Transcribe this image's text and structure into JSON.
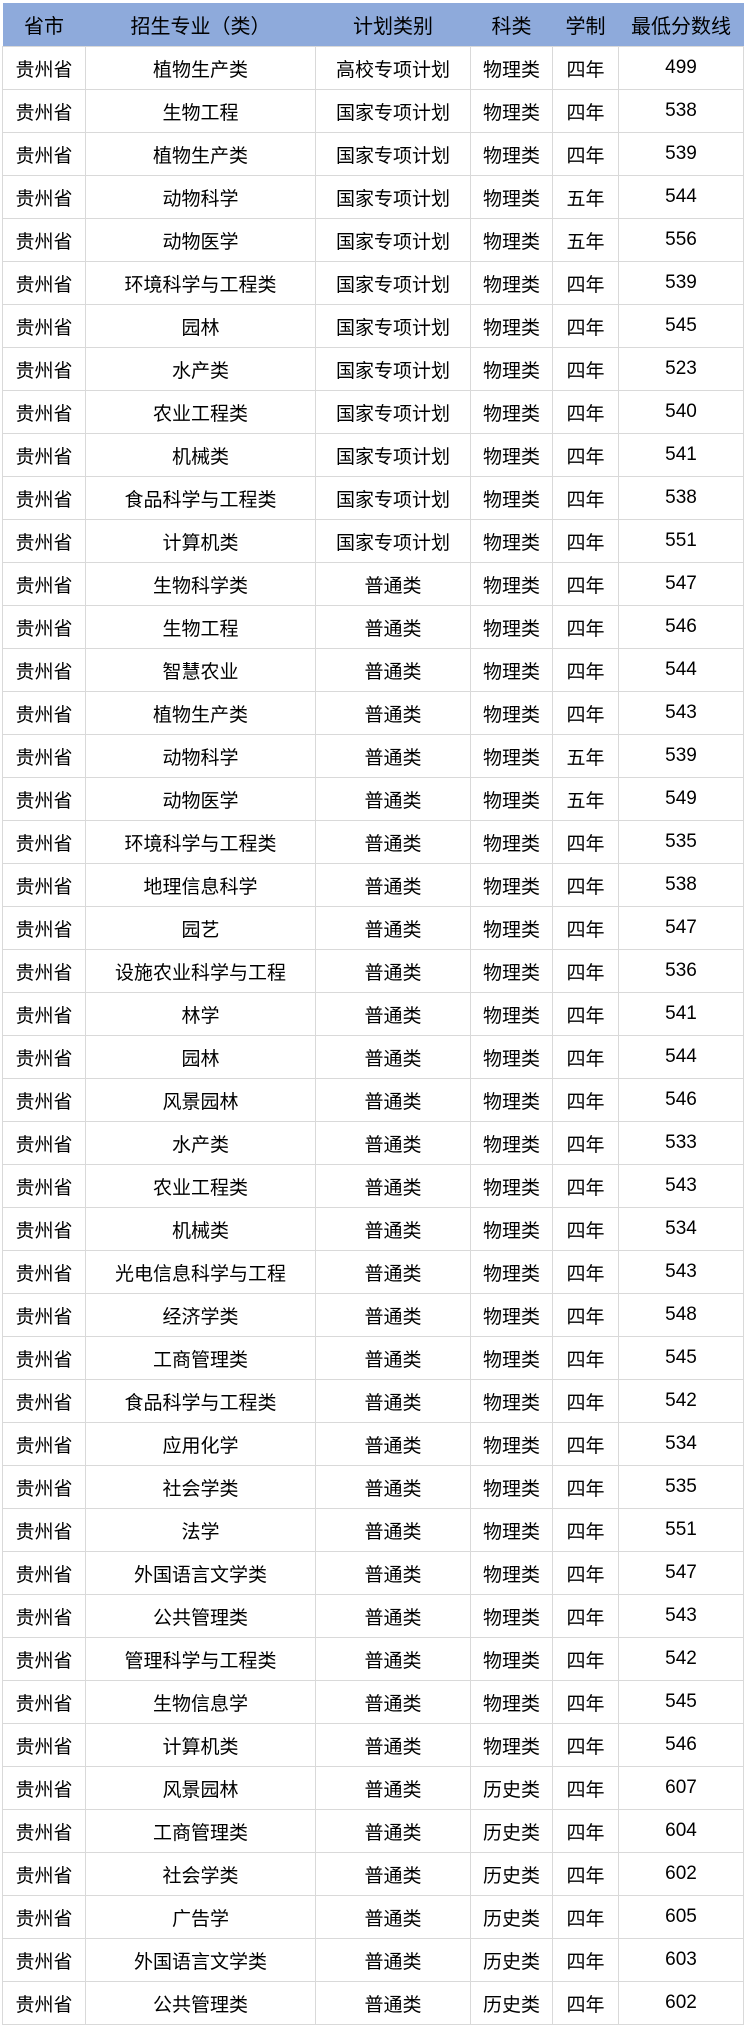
{
  "colors": {
    "header_bg": "#8EAADB",
    "grid_border": "#D9D9D9",
    "text": "#000000",
    "row_bg": "#FFFFFF"
  },
  "table": {
    "headers": [
      "省市",
      "招生专业（类）",
      "计划类别",
      "科类",
      "学制",
      "最低分数线"
    ],
    "rows": [
      [
        "贵州省",
        "植物生产类",
        "高校专项计划",
        "物理类",
        "四年",
        "499"
      ],
      [
        "贵州省",
        "生物工程",
        "国家专项计划",
        "物理类",
        "四年",
        "538"
      ],
      [
        "贵州省",
        "植物生产类",
        "国家专项计划",
        "物理类",
        "四年",
        "539"
      ],
      [
        "贵州省",
        "动物科学",
        "国家专项计划",
        "物理类",
        "五年",
        "544"
      ],
      [
        "贵州省",
        "动物医学",
        "国家专项计划",
        "物理类",
        "五年",
        "556"
      ],
      [
        "贵州省",
        "环境科学与工程类",
        "国家专项计划",
        "物理类",
        "四年",
        "539"
      ],
      [
        "贵州省",
        "园林",
        "国家专项计划",
        "物理类",
        "四年",
        "545"
      ],
      [
        "贵州省",
        "水产类",
        "国家专项计划",
        "物理类",
        "四年",
        "523"
      ],
      [
        "贵州省",
        "农业工程类",
        "国家专项计划",
        "物理类",
        "四年",
        "540"
      ],
      [
        "贵州省",
        "机械类",
        "国家专项计划",
        "物理类",
        "四年",
        "541"
      ],
      [
        "贵州省",
        "食品科学与工程类",
        "国家专项计划",
        "物理类",
        "四年",
        "538"
      ],
      [
        "贵州省",
        "计算机类",
        "国家专项计划",
        "物理类",
        "四年",
        "551"
      ],
      [
        "贵州省",
        "生物科学类",
        "普通类",
        "物理类",
        "四年",
        "547"
      ],
      [
        "贵州省",
        "生物工程",
        "普通类",
        "物理类",
        "四年",
        "546"
      ],
      [
        "贵州省",
        "智慧农业",
        "普通类",
        "物理类",
        "四年",
        "544"
      ],
      [
        "贵州省",
        "植物生产类",
        "普通类",
        "物理类",
        "四年",
        "543"
      ],
      [
        "贵州省",
        "动物科学",
        "普通类",
        "物理类",
        "五年",
        "539"
      ],
      [
        "贵州省",
        "动物医学",
        "普通类",
        "物理类",
        "五年",
        "549"
      ],
      [
        "贵州省",
        "环境科学与工程类",
        "普通类",
        "物理类",
        "四年",
        "535"
      ],
      [
        "贵州省",
        "地理信息科学",
        "普通类",
        "物理类",
        "四年",
        "538"
      ],
      [
        "贵州省",
        "园艺",
        "普通类",
        "物理类",
        "四年",
        "547"
      ],
      [
        "贵州省",
        "设施农业科学与工程",
        "普通类",
        "物理类",
        "四年",
        "536"
      ],
      [
        "贵州省",
        "林学",
        "普通类",
        "物理类",
        "四年",
        "541"
      ],
      [
        "贵州省",
        "园林",
        "普通类",
        "物理类",
        "四年",
        "544"
      ],
      [
        "贵州省",
        "风景园林",
        "普通类",
        "物理类",
        "四年",
        "546"
      ],
      [
        "贵州省",
        "水产类",
        "普通类",
        "物理类",
        "四年",
        "533"
      ],
      [
        "贵州省",
        "农业工程类",
        "普通类",
        "物理类",
        "四年",
        "543"
      ],
      [
        "贵州省",
        "机械类",
        "普通类",
        "物理类",
        "四年",
        "534"
      ],
      [
        "贵州省",
        "光电信息科学与工程",
        "普通类",
        "物理类",
        "四年",
        "543"
      ],
      [
        "贵州省",
        "经济学类",
        "普通类",
        "物理类",
        "四年",
        "548"
      ],
      [
        "贵州省",
        "工商管理类",
        "普通类",
        "物理类",
        "四年",
        "545"
      ],
      [
        "贵州省",
        "食品科学与工程类",
        "普通类",
        "物理类",
        "四年",
        "542"
      ],
      [
        "贵州省",
        "应用化学",
        "普通类",
        "物理类",
        "四年",
        "534"
      ],
      [
        "贵州省",
        "社会学类",
        "普通类",
        "物理类",
        "四年",
        "535"
      ],
      [
        "贵州省",
        "法学",
        "普通类",
        "物理类",
        "四年",
        "551"
      ],
      [
        "贵州省",
        "外国语言文学类",
        "普通类",
        "物理类",
        "四年",
        "547"
      ],
      [
        "贵州省",
        "公共管理类",
        "普通类",
        "物理类",
        "四年",
        "543"
      ],
      [
        "贵州省",
        "管理科学与工程类",
        "普通类",
        "物理类",
        "四年",
        "542"
      ],
      [
        "贵州省",
        "生物信息学",
        "普通类",
        "物理类",
        "四年",
        "545"
      ],
      [
        "贵州省",
        "计算机类",
        "普通类",
        "物理类",
        "四年",
        "546"
      ],
      [
        "贵州省",
        "风景园林",
        "普通类",
        "历史类",
        "四年",
        "607"
      ],
      [
        "贵州省",
        "工商管理类",
        "普通类",
        "历史类",
        "四年",
        "604"
      ],
      [
        "贵州省",
        "社会学类",
        "普通类",
        "历史类",
        "四年",
        "602"
      ],
      [
        "贵州省",
        "广告学",
        "普通类",
        "历史类",
        "四年",
        "605"
      ],
      [
        "贵州省",
        "外国语言文学类",
        "普通类",
        "历史类",
        "四年",
        "603"
      ],
      [
        "贵州省",
        "公共管理类",
        "普通类",
        "历史类",
        "四年",
        "602"
      ]
    ]
  }
}
